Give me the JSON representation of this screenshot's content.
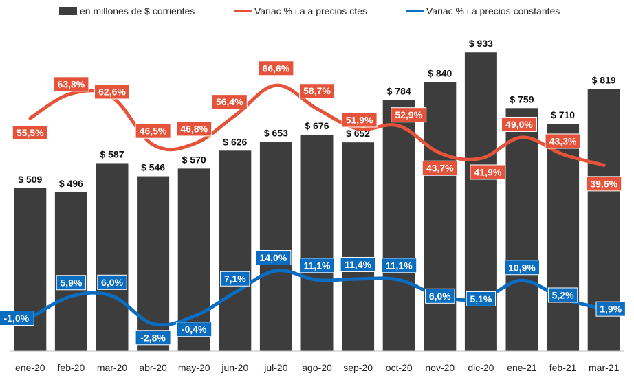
{
  "legend": {
    "bars": "en millones de $ corrientes",
    "line_cte": "Variac % i.a a precios ctes",
    "line_const": "Variac % i.a precios constantes"
  },
  "colors": {
    "bars": "#3d3d3d",
    "line_cte": "#e5543a",
    "line_const": "#0a6dbf"
  },
  "chart_data": {
    "type": "bar+line",
    "categories": [
      "ene-20",
      "feb-20",
      "mar-20",
      "abr-20",
      "may-20",
      "jun-20",
      "jul-20",
      "ago-20",
      "sep-20",
      "oct-20",
      "nov-20",
      "dic-20",
      "ene-21",
      "feb-21",
      "mar-21"
    ],
    "series": [
      {
        "name": "en millones de $ corrientes",
        "type": "bar",
        "values": [
          509,
          496,
          587,
          546,
          570,
          626,
          653,
          676,
          652,
          784,
          840,
          933,
          759,
          710,
          819
        ],
        "labels": [
          "$ 509",
          "$ 496",
          "$ 587",
          "$ 546",
          "$ 570",
          "$ 626",
          "$ 653",
          "$ 676",
          "$ 652",
          "$ 784",
          "$ 840",
          "$ 933",
          "$ 759",
          "$ 710",
          "$ 819"
        ]
      },
      {
        "name": "Variac % i.a a precios ctes",
        "type": "line",
        "values": [
          55.5,
          63.8,
          62.6,
          46.5,
          46.8,
          56.4,
          66.6,
          58.7,
          51.9,
          52.9,
          43.7,
          41.9,
          49.0,
          43.3,
          39.6
        ],
        "labels": [
          "55,5%",
          "63,8%",
          "62,6%",
          "46,5%",
          "46,8%",
          "56,4%",
          "66,6%",
          "58,7%",
          "51,9%",
          "52,9%",
          "43,7%",
          "41,9%",
          "49,0%",
          "43,3%",
          "39,6%"
        ]
      },
      {
        "name": "Variac % i.a precios constantes",
        "type": "line",
        "values": [
          -1.0,
          5.9,
          6.0,
          -2.8,
          -0.4,
          7.1,
          14.0,
          11.1,
          11.4,
          11.1,
          6.0,
          5.1,
          10.9,
          5.2,
          1.9
        ],
        "labels": [
          "-1,0%",
          "5,9%",
          "6,0%",
          "-2,8%",
          "-0,4%",
          "7,1%",
          "14,0%",
          "11,1%",
          "11,4%",
          "11,1%",
          "6,0%",
          "5,1%",
          "10,9%",
          "5,2%",
          "1,9%"
        ]
      }
    ],
    "legend_position": "top",
    "grid": false
  }
}
